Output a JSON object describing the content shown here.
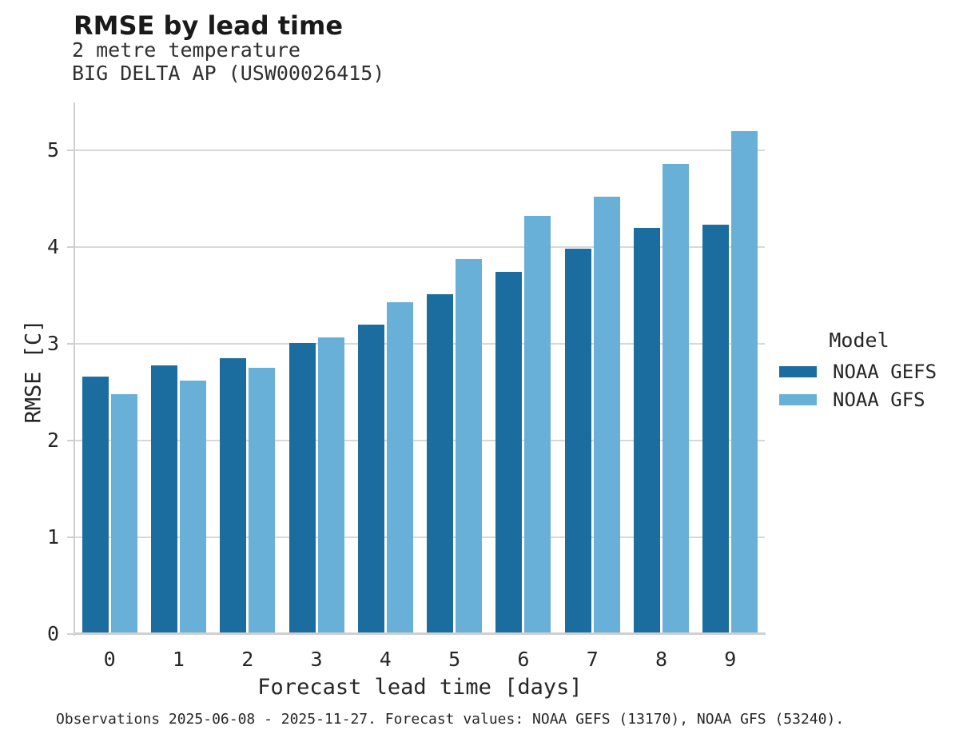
{
  "chart_data": {
    "type": "bar",
    "title": "RMSE by lead time",
    "subtitle": [
      "2 metre temperature",
      "BIG DELTA AP (USW00026415)"
    ],
    "xlabel": "Forecast lead time [days]",
    "ylabel": "RMSE [C]",
    "categories": [
      "0",
      "1",
      "2",
      "3",
      "4",
      "5",
      "6",
      "7",
      "8",
      "9"
    ],
    "series": [
      {
        "name": "NOAA GEFS",
        "color": "#1a6d9e",
        "values": [
          2.66,
          2.78,
          2.85,
          3.01,
          3.2,
          3.51,
          3.74,
          3.98,
          4.2,
          4.23
        ]
      },
      {
        "name": "NOAA GFS",
        "color": "#69b0d8",
        "values": [
          2.48,
          2.62,
          2.75,
          3.07,
          3.43,
          3.88,
          4.32,
          4.52,
          4.86,
          5.2
        ]
      }
    ],
    "ylim": [
      0,
      5.5
    ],
    "yticks": [
      0,
      1,
      2,
      3,
      4,
      5
    ],
    "grid": "horizontal",
    "legend": {
      "title": "Model",
      "position": "right"
    }
  },
  "footer": {
    "text": "Observations 2025-06-08 - 2025-11-27. Forecast values: NOAA GEFS (13170), NOAA GFS (53240)."
  },
  "colors": {
    "grid": "#d8d8d8",
    "spine": "#cfcfcf",
    "text": "#262626"
  }
}
